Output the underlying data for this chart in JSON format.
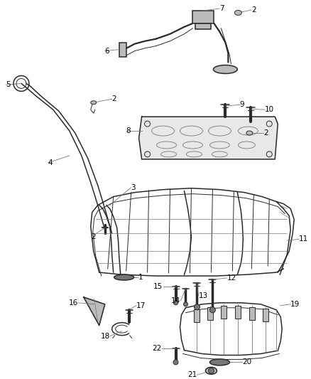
{
  "background_color": "#ffffff",
  "fig_width": 4.38,
  "fig_height": 5.33,
  "dpi": 100,
  "line_color": "#2a2a2a",
  "label_color": "#000000",
  "font_size": 7.5
}
